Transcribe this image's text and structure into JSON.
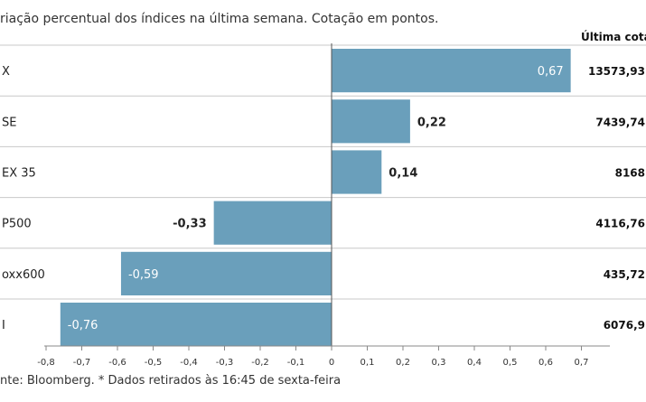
{
  "header": {
    "subtitle": "riação percentual dos índices na última semana. Cotação em pontos.",
    "price_column_title": "Última cotaç"
  },
  "footer": {
    "text": "nte: Bloomberg.  * Dados retirados às 16:45 de sexta-feira"
  },
  "chart_data": {
    "type": "bar",
    "orientation": "horizontal",
    "categories": [
      "X",
      "SE",
      "EX 35",
      "P500",
      "oxx600",
      "I"
    ],
    "values": [
      0.67,
      0.22,
      0.14,
      -0.33,
      -0.59,
      -0.76
    ],
    "value_labels": [
      "0,67",
      "0,22",
      "0,14",
      "-0,33",
      "-0,59",
      "-0,76"
    ],
    "last_prices": [
      "13573,93",
      "7439,74",
      "8168",
      "4116,76",
      "435,72",
      "6076,9"
    ],
    "xlim": [
      -0.8,
      0.7
    ],
    "x_ticks": [
      -0.8,
      -0.7,
      -0.6,
      -0.5,
      -0.4,
      -0.3,
      -0.2,
      -0.1,
      0,
      0.1,
      0.2,
      0.3,
      0.4,
      0.5,
      0.6,
      0.7
    ],
    "x_tick_labels": [
      "-0,8",
      "-0,7",
      "-0,6",
      "-0,5",
      "-0,4",
      "-0,3",
      "-0,2",
      "-0,1",
      "0",
      "0,1",
      "0,2",
      "0,3",
      "0,4",
      "0,5",
      "0,6",
      "0,7"
    ],
    "bar_color": "#6a9fbb",
    "grid": "horizontal row separators",
    "legend": "none"
  }
}
